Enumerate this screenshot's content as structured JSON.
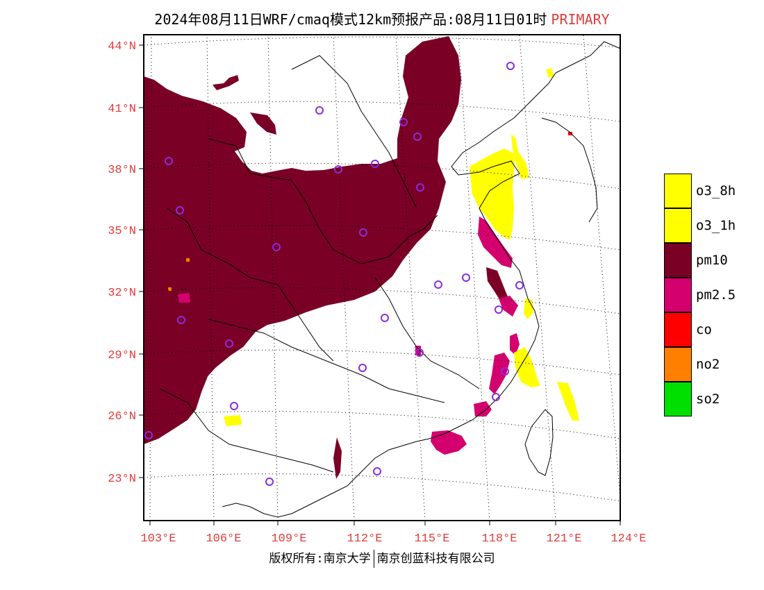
{
  "header": {
    "title": "2024年08月11日WRF/cmaq模式12km预报产品:08月11日01时",
    "tag": "PRIMARY"
  },
  "axes": {
    "lat_labels": [
      "44°N",
      "41°N",
      "38°N",
      "35°N",
      "32°N",
      "29°N",
      "26°N",
      "23°N"
    ],
    "lon_labels": [
      "103°E",
      "106°E",
      "109°E",
      "112°E",
      "115°E",
      "118°E",
      "121°E",
      "124°E"
    ],
    "label_color": "#e03c3c"
  },
  "legend": [
    {
      "label": "o3_8h",
      "color": "#ffff00"
    },
    {
      "label": "o3_1h",
      "color": "#ffff00"
    },
    {
      "label": "pm10",
      "color": "#7a0026"
    },
    {
      "label": "pm2.5",
      "color": "#d4006e"
    },
    {
      "label": "co",
      "color": "#ff0000"
    },
    {
      "label": "no2",
      "color": "#ff8000"
    },
    {
      "label": "so2",
      "color": "#00e000"
    }
  ],
  "footer": {
    "left": "版权所有:南京大学",
    "right": "南京创蓝科技有限公司"
  },
  "map_data": {
    "extent": {
      "lon": [
        103,
        124
      ],
      "lat": [
        21,
        44.5
      ]
    },
    "station_color": "#8a2be2"
  }
}
